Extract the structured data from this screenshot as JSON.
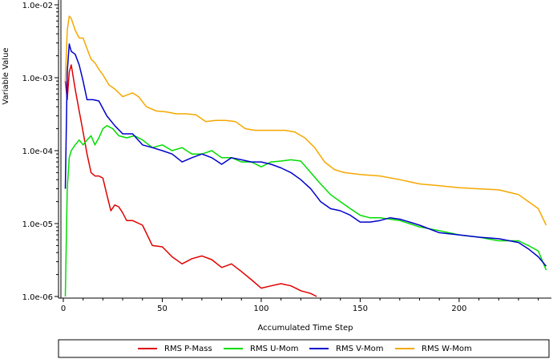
{
  "chart_data": {
    "type": "line",
    "xlabel": "Accumulated Time Step",
    "ylabel": "Variable Value",
    "y_scale": "log",
    "xlim": [
      0,
      245
    ],
    "ylim": [
      1e-06,
      0.01
    ],
    "x_ticks": [
      0,
      50,
      100,
      150,
      200
    ],
    "x_tick_labels": [
      "0",
      "50",
      "100",
      "150",
      "200"
    ],
    "y_ticks": [
      1e-06,
      1e-05,
      0.0001,
      0.001,
      0.01
    ],
    "y_tick_labels": [
      "1.0e-06",
      "1.0e-05",
      "1.0e-04",
      "1.0e-03",
      "1.0e-02"
    ],
    "grid": false,
    "legend_position": "bottom",
    "series": [
      {
        "name": "RMS P-Mass",
        "color": "#e00000",
        "points": [
          [
            1,
            0.0009
          ],
          [
            2,
            0.0005
          ],
          [
            3,
            0.0012
          ],
          [
            4,
            0.0015
          ],
          [
            6,
            0.0007
          ],
          [
            8,
            0.00035
          ],
          [
            10,
            0.00018
          ],
          [
            12,
            9e-05
          ],
          [
            14,
            5e-05
          ],
          [
            16,
            4.5e-05
          ],
          [
            18,
            4.5e-05
          ],
          [
            20,
            4.2e-05
          ],
          [
            22,
            2.5e-05
          ],
          [
            24,
            1.5e-05
          ],
          [
            26,
            1.8e-05
          ],
          [
            28,
            1.7e-05
          ],
          [
            30,
            1.4e-05
          ],
          [
            32,
            1.1e-05
          ],
          [
            35,
            1.1e-05
          ],
          [
            40,
            9.5e-06
          ],
          [
            45,
            5e-06
          ],
          [
            50,
            4.8e-06
          ],
          [
            55,
            3.5e-06
          ],
          [
            60,
            2.8e-06
          ],
          [
            65,
            3.3e-06
          ],
          [
            70,
            3.6e-06
          ],
          [
            75,
            3.2e-06
          ],
          [
            80,
            2.5e-06
          ],
          [
            85,
            2.8e-06
          ],
          [
            90,
            2.2e-06
          ],
          [
            95,
            1.7e-06
          ],
          [
            100,
            1.3e-06
          ],
          [
            105,
            1.4e-06
          ],
          [
            110,
            1.5e-06
          ],
          [
            115,
            1.4e-06
          ],
          [
            120,
            1.2e-06
          ],
          [
            125,
            1.1e-06
          ],
          [
            128,
            1e-06
          ]
        ]
      },
      {
        "name": "RMS U-Mom",
        "color": "#00dd00",
        "points": [
          [
            1,
            1e-06
          ],
          [
            2,
            3e-05
          ],
          [
            3,
            8e-05
          ],
          [
            4,
            0.0001
          ],
          [
            6,
            0.00012
          ],
          [
            8,
            0.00014
          ],
          [
            10,
            0.00012
          ],
          [
            12,
            0.00014
          ],
          [
            14,
            0.00016
          ],
          [
            16,
            0.00012
          ],
          [
            18,
            0.00015
          ],
          [
            20,
            0.0002
          ],
          [
            22,
            0.00022
          ],
          [
            25,
            0.0002
          ],
          [
            28,
            0.00016
          ],
          [
            32,
            0.00015
          ],
          [
            36,
            0.00016
          ],
          [
            40,
            0.00014
          ],
          [
            45,
            0.00011
          ],
          [
            50,
            0.00012
          ],
          [
            55,
            0.0001
          ],
          [
            60,
            0.00011
          ],
          [
            65,
            9e-05
          ],
          [
            70,
            9e-05
          ],
          [
            75,
            0.0001
          ],
          [
            80,
            8e-05
          ],
          [
            85,
            8e-05
          ],
          [
            90,
            7e-05
          ],
          [
            95,
            7e-05
          ],
          [
            100,
            6e-05
          ],
          [
            105,
            7e-05
          ],
          [
            110,
            7.2e-05
          ],
          [
            115,
            7.5e-05
          ],
          [
            120,
            7.2e-05
          ],
          [
            125,
            5e-05
          ],
          [
            130,
            3.5e-05
          ],
          [
            135,
            2.5e-05
          ],
          [
            140,
            2e-05
          ],
          [
            145,
            1.6e-05
          ],
          [
            150,
            1.3e-05
          ],
          [
            155,
            1.2e-05
          ],
          [
            160,
            1.2e-05
          ],
          [
            170,
            1.1e-05
          ],
          [
            180,
            9e-06
          ],
          [
            190,
            8e-06
          ],
          [
            200,
            7e-06
          ],
          [
            210,
            6.5e-06
          ],
          [
            220,
            5.8e-06
          ],
          [
            230,
            5.8e-06
          ],
          [
            235,
            5e-06
          ],
          [
            240,
            4.2e-06
          ],
          [
            244,
            2.3e-06
          ]
        ]
      },
      {
        "name": "RMS V-Mom",
        "color": "#0000cc",
        "points": [
          [
            1,
            3e-05
          ],
          [
            2,
            0.0012
          ],
          [
            3,
            0.0029
          ],
          [
            4,
            0.0023
          ],
          [
            6,
            0.0021
          ],
          [
            8,
            0.0015
          ],
          [
            10,
            0.0009
          ],
          [
            12,
            0.0005
          ],
          [
            15,
            0.0005
          ],
          [
            18,
            0.00048
          ],
          [
            22,
            0.0003
          ],
          [
            26,
            0.00022
          ],
          [
            30,
            0.00017
          ],
          [
            35,
            0.00017
          ],
          [
            40,
            0.00012
          ],
          [
            45,
            0.00011
          ],
          [
            50,
            0.0001
          ],
          [
            55,
            9e-05
          ],
          [
            60,
            7e-05
          ],
          [
            65,
            8e-05
          ],
          [
            70,
            9e-05
          ],
          [
            75,
            8e-05
          ],
          [
            80,
            6.5e-05
          ],
          [
            85,
            8e-05
          ],
          [
            90,
            7.5e-05
          ],
          [
            95,
            7e-05
          ],
          [
            100,
            7e-05
          ],
          [
            105,
            6.5e-05
          ],
          [
            110,
            5.8e-05
          ],
          [
            115,
            5e-05
          ],
          [
            120,
            4e-05
          ],
          [
            125,
            3e-05
          ],
          [
            130,
            2e-05
          ],
          [
            135,
            1.6e-05
          ],
          [
            140,
            1.5e-05
          ],
          [
            145,
            1.3e-05
          ],
          [
            150,
            1.05e-05
          ],
          [
            155,
            1.05e-05
          ],
          [
            160,
            1.1e-05
          ],
          [
            165,
            1.2e-05
          ],
          [
            170,
            1.15e-05
          ],
          [
            175,
            1.05e-05
          ],
          [
            180,
            9.5e-06
          ],
          [
            190,
            7.5e-06
          ],
          [
            200,
            7e-06
          ],
          [
            210,
            6.5e-06
          ],
          [
            220,
            6.2e-06
          ],
          [
            230,
            5.5e-06
          ],
          [
            235,
            4.5e-06
          ],
          [
            240,
            3.5e-06
          ],
          [
            244,
            2.6e-06
          ]
        ]
      },
      {
        "name": "RMS W-Mom",
        "color": "#f5a800",
        "points": [
          [
            1,
            0.0009
          ],
          [
            2,
            0.0045
          ],
          [
            3,
            0.007
          ],
          [
            4,
            0.0065
          ],
          [
            6,
            0.0045
          ],
          [
            8,
            0.0035
          ],
          [
            10,
            0.0035
          ],
          [
            12,
            0.0025
          ],
          [
            14,
            0.0018
          ],
          [
            16,
            0.0016
          ],
          [
            18,
            0.0013
          ],
          [
            20,
            0.0011
          ],
          [
            23,
            0.0008
          ],
          [
            26,
            0.0007
          ],
          [
            30,
            0.00055
          ],
          [
            35,
            0.00062
          ],
          [
            38,
            0.00055
          ],
          [
            42,
            0.0004
          ],
          [
            47,
            0.00035
          ],
          [
            52,
            0.00034
          ],
          [
            57,
            0.00032
          ],
          [
            62,
            0.00032
          ],
          [
            67,
            0.00031
          ],
          [
            72,
            0.00025
          ],
          [
            77,
            0.00026
          ],
          [
            82,
            0.00026
          ],
          [
            87,
            0.00025
          ],
          [
            92,
            0.0002
          ],
          [
            97,
            0.00019
          ],
          [
            102,
            0.00019
          ],
          [
            107,
            0.00019
          ],
          [
            112,
            0.00019
          ],
          [
            117,
            0.00018
          ],
          [
            122,
            0.00015
          ],
          [
            127,
            0.00011
          ],
          [
            132,
            7e-05
          ],
          [
            137,
            5.5e-05
          ],
          [
            142,
            5e-05
          ],
          [
            150,
            4.7e-05
          ],
          [
            160,
            4.5e-05
          ],
          [
            170,
            4e-05
          ],
          [
            180,
            3.5e-05
          ],
          [
            190,
            3.3e-05
          ],
          [
            200,
            3.1e-05
          ],
          [
            210,
            3e-05
          ],
          [
            220,
            2.9e-05
          ],
          [
            230,
            2.5e-05
          ],
          [
            235,
            2e-05
          ],
          [
            240,
            1.6e-05
          ],
          [
            244,
            9.5e-06
          ]
        ]
      }
    ]
  }
}
